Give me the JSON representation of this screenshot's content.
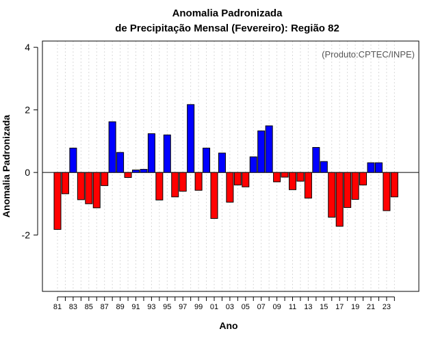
{
  "chart_data": {
    "type": "bar",
    "title": "Anomalia Padronizada",
    "subtitle": "de Precipitação Mensal (Fevereiro): Região 82",
    "xlabel": "Ano",
    "ylabel": "Anomalia Padronizada",
    "annotation": "(Produto:CPTEC/INPE)",
    "ylim": [
      -3.8,
      4.2
    ],
    "yticks": [
      -2,
      0,
      2,
      4
    ],
    "tick_labels": [
      "81",
      "83",
      "85",
      "87",
      "89",
      "91",
      "93",
      "95",
      "97",
      "99",
      "01",
      "03",
      "05",
      "07",
      "09",
      "11",
      "13",
      "15",
      "17",
      "19",
      "21",
      "23"
    ],
    "categories": [
      "81",
      "82",
      "83",
      "84",
      "85",
      "86",
      "87",
      "88",
      "89",
      "90",
      "91",
      "92",
      "93",
      "94",
      "95",
      "96",
      "97",
      "98",
      "99",
      "00",
      "01",
      "02",
      "03",
      "04",
      "05",
      "06",
      "07",
      "08",
      "09",
      "10",
      "11",
      "12",
      "13",
      "14",
      "15",
      "16",
      "17",
      "18",
      "19",
      "20",
      "21",
      "22",
      "23",
      "24"
    ],
    "values": [
      -1.82,
      -0.68,
      0.78,
      -0.87,
      -1.0,
      -1.13,
      -0.42,
      1.62,
      0.64,
      -0.16,
      0.08,
      0.1,
      1.24,
      -0.88,
      1.2,
      -0.78,
      -0.6,
      2.17,
      -0.57,
      0.78,
      -1.47,
      0.62,
      -0.95,
      -0.4,
      -0.46,
      0.5,
      1.33,
      1.49,
      -0.3,
      -0.15,
      -0.55,
      -0.28,
      -0.82,
      0.8,
      0.35,
      -1.43,
      -1.72,
      -1.12,
      -0.86,
      -0.4,
      0.31,
      0.31,
      -1.22,
      -0.78
    ],
    "colors": {
      "positive": "#0000ff",
      "negative": "#ff0000",
      "grid": "#d9d9d9",
      "axis": "#000000",
      "note": "#555555"
    },
    "grid": true
  }
}
